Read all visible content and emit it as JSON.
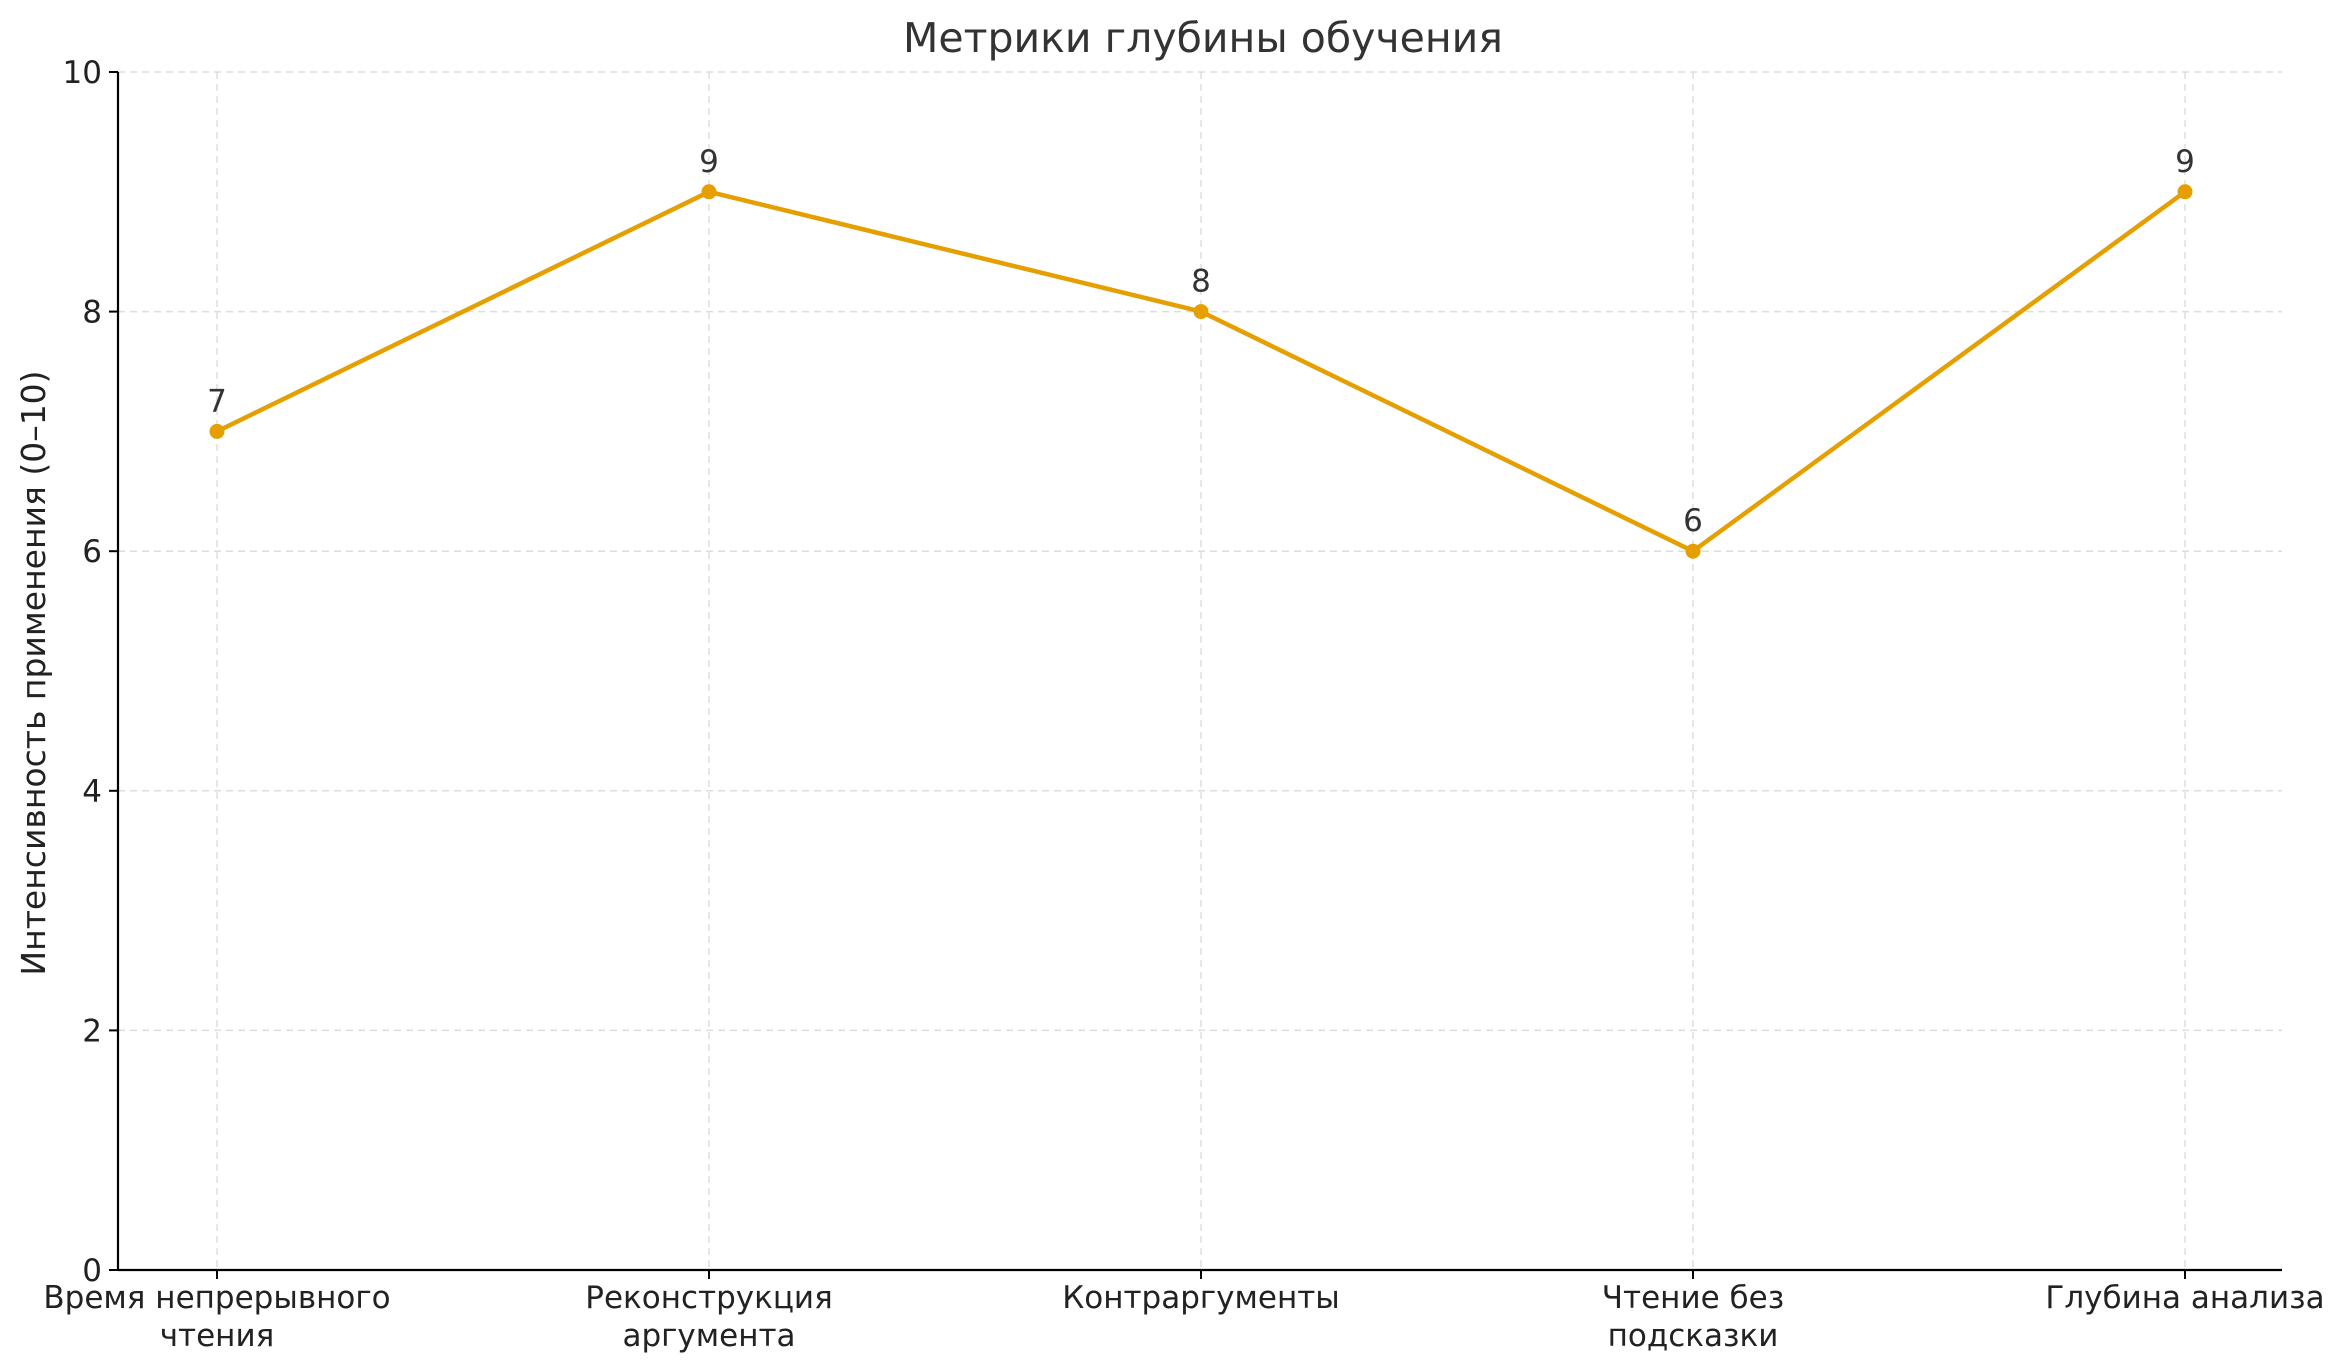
{
  "chart_data": {
    "type": "line",
    "title": "Метрики глубины обучения",
    "xlabel": "",
    "ylabel": "Интенсивность применения (0–10)",
    "categories": [
      [
        "Время непрерывного",
        "чтения"
      ],
      [
        "Реконструкция",
        "аргумента"
      ],
      [
        "Контраргументы"
      ],
      [
        "Чтение без",
        "подсказки"
      ],
      [
        "Глубина анализа"
      ]
    ],
    "series": [
      {
        "values": [
          7,
          9,
          8,
          6,
          9
        ],
        "color": "#E69F00"
      }
    ],
    "ylim": [
      0,
      10
    ],
    "yticks": [
      0,
      2,
      4,
      6,
      8,
      10
    ],
    "grid": true,
    "data_labels": true,
    "marker": "circle"
  }
}
